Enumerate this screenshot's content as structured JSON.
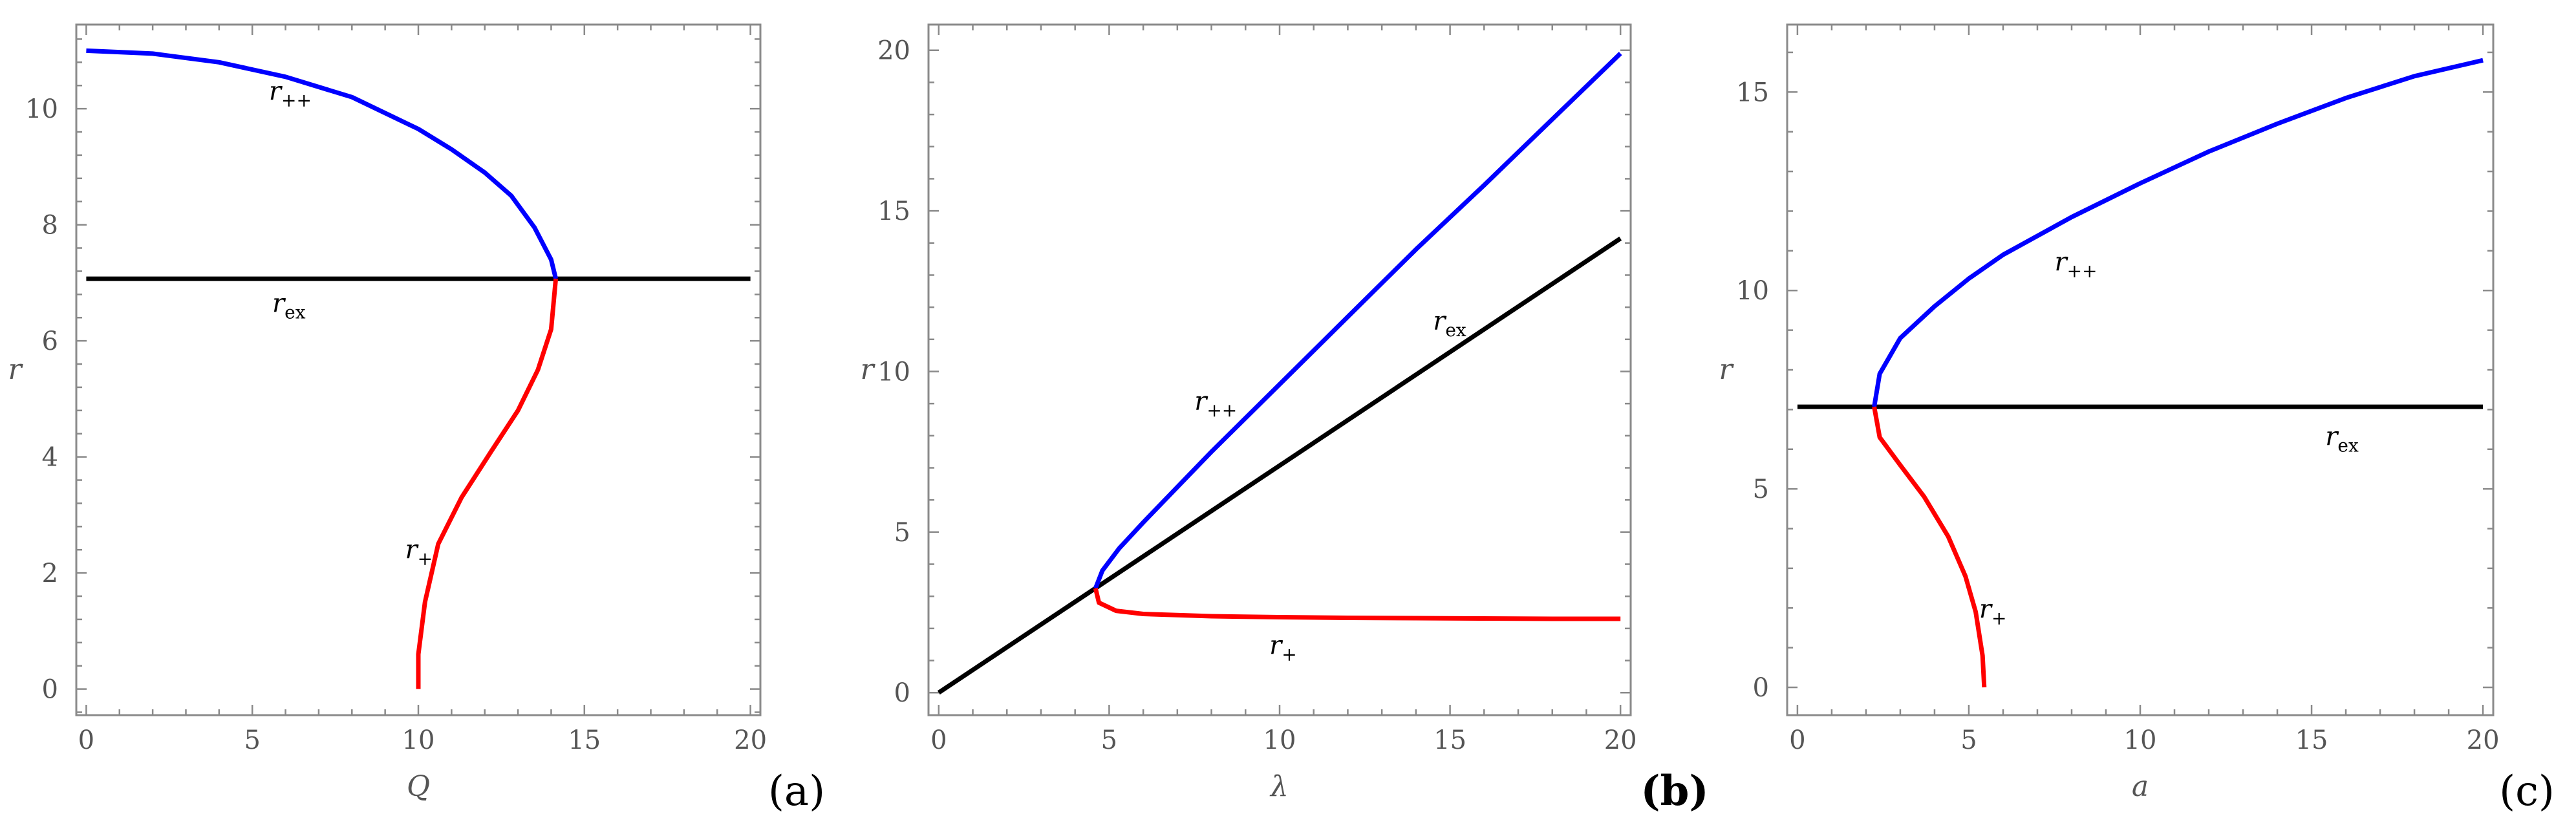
{
  "chart_data": [
    {
      "panel": "(a)",
      "type": "line",
      "title": "",
      "xlabel": "Q",
      "ylabel": "r",
      "xlim": [
        -0.3,
        20.3
      ],
      "ylim": [
        -0.45,
        11.45
      ],
      "xticks": [
        0,
        5,
        10,
        15,
        20
      ],
      "yticks": [
        0,
        2,
        4,
        6,
        8,
        10
      ],
      "grid": false,
      "series": [
        {
          "name": "r++",
          "label_main": "r",
          "label_sub": "++",
          "color": "#0000ff",
          "x": [
            0,
            2,
            4,
            6,
            8,
            10,
            11,
            12,
            12.8,
            13.5,
            14.0,
            14.14
          ],
          "y": [
            11.0,
            10.95,
            10.8,
            10.55,
            10.2,
            9.65,
            9.3,
            8.9,
            8.5,
            7.95,
            7.4,
            7.07
          ]
        },
        {
          "name": "rex",
          "label_main": "r",
          "label_sub": "ex",
          "color": "#000000",
          "x": [
            0,
            20
          ],
          "y": [
            7.07,
            7.07
          ]
        },
        {
          "name": "r+",
          "label_main": "r",
          "label_sub": "+",
          "color": "#ff0000",
          "x": [
            14.14,
            14.0,
            13.6,
            13.0,
            12.2,
            11.3,
            10.6,
            10.2,
            10.0,
            10.0
          ],
          "y": [
            7.07,
            6.2,
            5.5,
            4.8,
            4.1,
            3.3,
            2.5,
            1.5,
            0.6,
            0.0
          ]
        }
      ],
      "annotations": [
        {
          "main": "r",
          "sub": "++",
          "x": 5.5,
          "y": 10.15
        },
        {
          "main": "r",
          "sub": "ex",
          "x": 5.6,
          "y": 6.5
        },
        {
          "main": "r",
          "sub": "+",
          "x": 9.6,
          "y": 2.25
        }
      ]
    },
    {
      "panel": "(b)",
      "type": "line",
      "title": "",
      "xlabel": "λ",
      "ylabel": "r",
      "xlim": [
        -0.3,
        20.3
      ],
      "ylim": [
        -0.7,
        20.8
      ],
      "xticks": [
        0,
        5,
        10,
        15,
        20
      ],
      "yticks": [
        0,
        5,
        10,
        15,
        20
      ],
      "grid": false,
      "series": [
        {
          "name": "r++",
          "label_main": "r",
          "label_sub": "++",
          "color": "#0000ff",
          "x": [
            4.6,
            4.8,
            5.3,
            6,
            7,
            8,
            10,
            12,
            14,
            16,
            18,
            20
          ],
          "y": [
            3.25,
            3.8,
            4.5,
            5.3,
            6.4,
            7.5,
            9.6,
            11.7,
            13.8,
            15.8,
            17.85,
            19.9
          ]
        },
        {
          "name": "rex",
          "label_main": "r",
          "label_sub": "ex",
          "color": "#000000",
          "x": [
            0,
            20
          ],
          "y": [
            0,
            14.14
          ]
        },
        {
          "name": "r+",
          "label_main": "r",
          "label_sub": "+",
          "color": "#ff0000",
          "x": [
            4.6,
            4.7,
            5.2,
            6,
            8,
            10,
            12,
            14,
            16,
            18,
            20
          ],
          "y": [
            3.25,
            2.8,
            2.55,
            2.45,
            2.38,
            2.35,
            2.33,
            2.32,
            2.31,
            2.3,
            2.3
          ]
        }
      ],
      "annotations": [
        {
          "main": "r",
          "sub": "++",
          "x": 7.5,
          "y": 8.8
        },
        {
          "main": "r",
          "sub": "ex",
          "x": 14.5,
          "y": 11.3
        },
        {
          "main": "r",
          "sub": "+",
          "x": 9.7,
          "y": 1.2
        }
      ]
    },
    {
      "panel": "(c)",
      "type": "line",
      "title": "",
      "xlabel": "a",
      "ylabel": "r",
      "xlim": [
        -0.3,
        20.3
      ],
      "ylim": [
        -0.7,
        16.7
      ],
      "xticks": [
        0,
        5,
        10,
        15,
        20
      ],
      "yticks": [
        0,
        5,
        10,
        15
      ],
      "grid": false,
      "series": [
        {
          "name": "r++",
          "label_main": "r",
          "label_sub": "++",
          "color": "#0000ff",
          "x": [
            2.24,
            2.4,
            3,
            4,
            5,
            6,
            8,
            10,
            12,
            14,
            16,
            18,
            20
          ],
          "y": [
            7.07,
            7.9,
            8.8,
            9.6,
            10.3,
            10.9,
            11.85,
            12.7,
            13.5,
            14.2,
            14.85,
            15.4,
            15.8
          ]
        },
        {
          "name": "rex",
          "label_main": "r",
          "label_sub": "ex",
          "color": "#000000",
          "x": [
            0,
            20
          ],
          "y": [
            7.07,
            7.07
          ]
        },
        {
          "name": "r+",
          "label_main": "r",
          "label_sub": "+",
          "color": "#ff0000",
          "x": [
            2.24,
            2.4,
            3.0,
            3.7,
            4.4,
            4.9,
            5.2,
            5.4,
            5.45
          ],
          "y": [
            7.07,
            6.3,
            5.6,
            4.8,
            3.8,
            2.8,
            1.9,
            0.8,
            0.0
          ]
        }
      ],
      "annotations": [
        {
          "main": "r",
          "sub": "++",
          "x": 7.5,
          "y": 10.5
        },
        {
          "main": "r",
          "sub": "ex",
          "x": 15.4,
          "y": 6.1
        },
        {
          "main": "r",
          "sub": "+",
          "x": 5.3,
          "y": 1.75
        }
      ]
    }
  ]
}
